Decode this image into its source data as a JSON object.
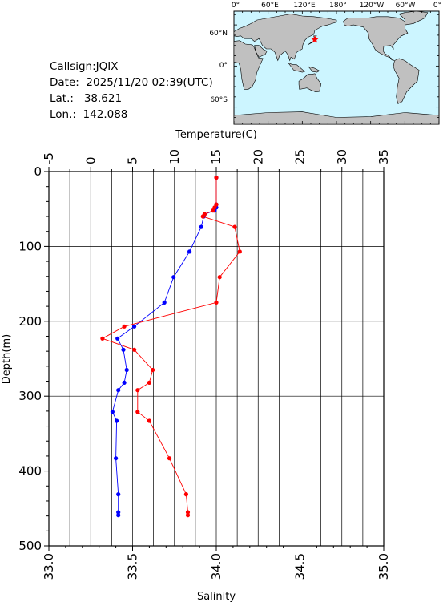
{
  "station": {
    "callsign_label": "Callsign:",
    "callsign": "JQIX",
    "date_label": "Date:",
    "date": "2025/11/20 02:39(UTC)",
    "lat_label": "Lat.:",
    "lat": "38.621",
    "lon_label": "Lon.:",
    "lon": "142.088"
  },
  "map": {
    "top_ticks": [
      "0°",
      "60°E",
      "120°E",
      "180°",
      "120°W",
      "60°W",
      "0°"
    ],
    "left_ticks": [
      "60°N",
      "0°",
      "60°S"
    ],
    "ocean_color": "#ccf5ff",
    "land_color": "#c0c0c0",
    "marker_color": "#ff0000",
    "marker_lon": 142.088,
    "marker_lat": 38.621
  },
  "chart_data": {
    "type": "line",
    "title": "",
    "top_axis_label": "Temperature(C)",
    "bottom_axis_label": "Salinity",
    "left_axis_label": "Depth(m)",
    "temperature_range": [
      -5,
      35
    ],
    "temperature_ticks": [
      "-5",
      "0",
      "5",
      "10",
      "15",
      "20",
      "25",
      "30",
      "35"
    ],
    "salinity_range": [
      33.0,
      35.0
    ],
    "salinity_ticks": [
      "33.0",
      "33.5",
      "34.0",
      "34.5",
      "35.0"
    ],
    "depth_range": [
      0,
      500
    ],
    "depth_ticks": [
      "0",
      "100",
      "200",
      "300",
      "400",
      "500"
    ],
    "grid": true,
    "series": [
      {
        "quantity": "temperature",
        "color": "#0000ff",
        "points": [
          [
            15.0,
            8
          ],
          [
            15.0,
            44
          ],
          [
            15.0,
            48
          ],
          [
            14.8,
            52
          ],
          [
            13.6,
            57
          ],
          [
            13.5,
            60
          ],
          [
            13.2,
            74
          ],
          [
            11.8,
            107
          ],
          [
            9.9,
            141
          ],
          [
            8.8,
            175
          ],
          [
            5.2,
            207
          ],
          [
            3.2,
            223
          ],
          [
            3.9,
            238
          ],
          [
            4.3,
            265
          ],
          [
            4.0,
            282
          ],
          [
            3.3,
            292
          ],
          [
            2.6,
            321
          ],
          [
            3.1,
            333
          ],
          [
            3.0,
            383
          ],
          [
            3.3,
            431
          ],
          [
            3.3,
            455
          ],
          [
            3.3,
            459
          ]
        ]
      },
      {
        "quantity": "salinity",
        "color": "#ff0000",
        "points": [
          [
            34.0,
            8
          ],
          [
            34.0,
            44
          ],
          [
            33.99,
            48
          ],
          [
            33.98,
            52
          ],
          [
            33.93,
            57
          ],
          [
            33.92,
            60
          ],
          [
            34.11,
            74
          ],
          [
            34.14,
            107
          ],
          [
            34.02,
            141
          ],
          [
            34.0,
            175
          ],
          [
            33.45,
            207
          ],
          [
            33.32,
            223
          ],
          [
            33.51,
            238
          ],
          [
            33.62,
            265
          ],
          [
            33.6,
            282
          ],
          [
            33.53,
            292
          ],
          [
            33.53,
            321
          ],
          [
            33.6,
            333
          ],
          [
            33.72,
            383
          ],
          [
            33.82,
            431
          ],
          [
            33.83,
            455
          ],
          [
            33.83,
            459
          ]
        ]
      }
    ]
  }
}
